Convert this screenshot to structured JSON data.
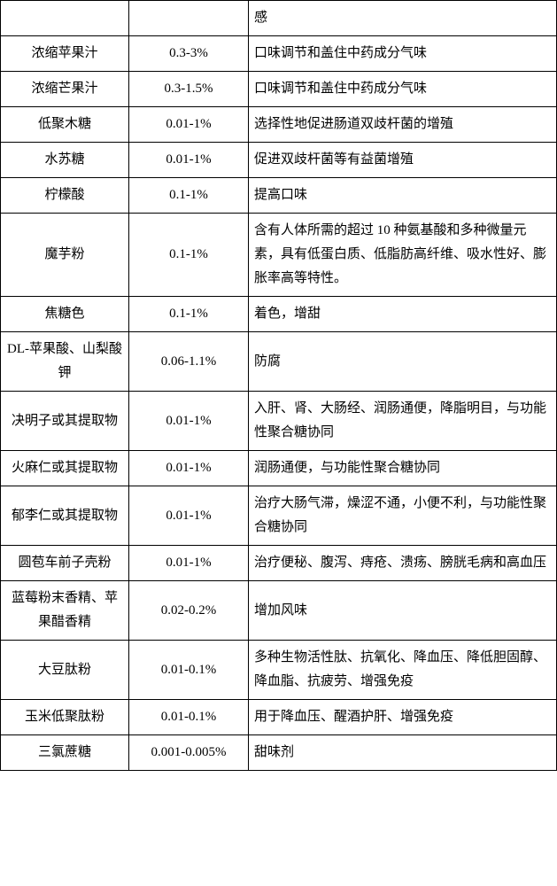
{
  "table": {
    "rows": [
      {
        "c1": "",
        "c2": "",
        "c3": "感"
      },
      {
        "c1": "浓缩苹果汁",
        "c2": "0.3-3%",
        "c3": "口味调节和盖住中药成分气味"
      },
      {
        "c1": "浓缩芒果汁",
        "c2": "0.3-1.5%",
        "c3": "口味调节和盖住中药成分气味"
      },
      {
        "c1": "低聚木糖",
        "c2": "0.01-1%",
        "c3": "选择性地促进肠道双歧杆菌的增殖"
      },
      {
        "c1": "水苏糖",
        "c2": "0.01-1%",
        "c3": "促进双歧杆菌等有益菌增殖"
      },
      {
        "c1": "柠檬酸",
        "c2": "0.1-1%",
        "c3": "提高口味"
      },
      {
        "c1": "魔芋粉",
        "c2": "0.1-1%",
        "c3": "含有人体所需的超过 10 种氨基酸和多种微量元素，具有低蛋白质、低脂肪高纤维、吸水性好、膨胀率高等特性。"
      },
      {
        "c1": "焦糖色",
        "c2": "0.1-1%",
        "c3": "着色，增甜"
      },
      {
        "c1": "DL-苹果酸、山梨酸钾",
        "c2": "0.06-1.1%",
        "c3": "防腐"
      },
      {
        "c1": "决明子或其提取物",
        "c2": "0.01-1%",
        "c3": "入肝、肾、大肠经、润肠通便，降脂明目，与功能性聚合糖协同"
      },
      {
        "c1": "火麻仁或其提取物",
        "c2": "0.01-1%",
        "c3": "润肠通便，与功能性聚合糖协同"
      },
      {
        "c1": "郁李仁或其提取物",
        "c2": "0.01-1%",
        "c3": "治疗大肠气滞，燥涩不通，小便不利，与功能性聚合糖协同"
      },
      {
        "c1": "圆苞车前子壳粉",
        "c2": "0.01-1%",
        "c3": "治疗便秘、腹泻、痔疮、溃疡、膀胱毛病和高血压"
      },
      {
        "c1": "蓝莓粉末香精、苹果醋香精",
        "c2": "0.02-0.2%",
        "c3": "增加风味"
      },
      {
        "c1": "大豆肽粉",
        "c2": "0.01-0.1%",
        "c3": "多种生物活性肽、抗氧化、降血压、降低胆固醇、降血脂、抗疲劳、增强免疫"
      },
      {
        "c1": "玉米低聚肽粉",
        "c2": "0.01-0.1%",
        "c3": "用于降血压、醒酒护肝、增强免疫"
      },
      {
        "c1": "三氯蔗糖",
        "c2": "0.001-0.005%",
        "c3": "甜味剂"
      }
    ]
  }
}
